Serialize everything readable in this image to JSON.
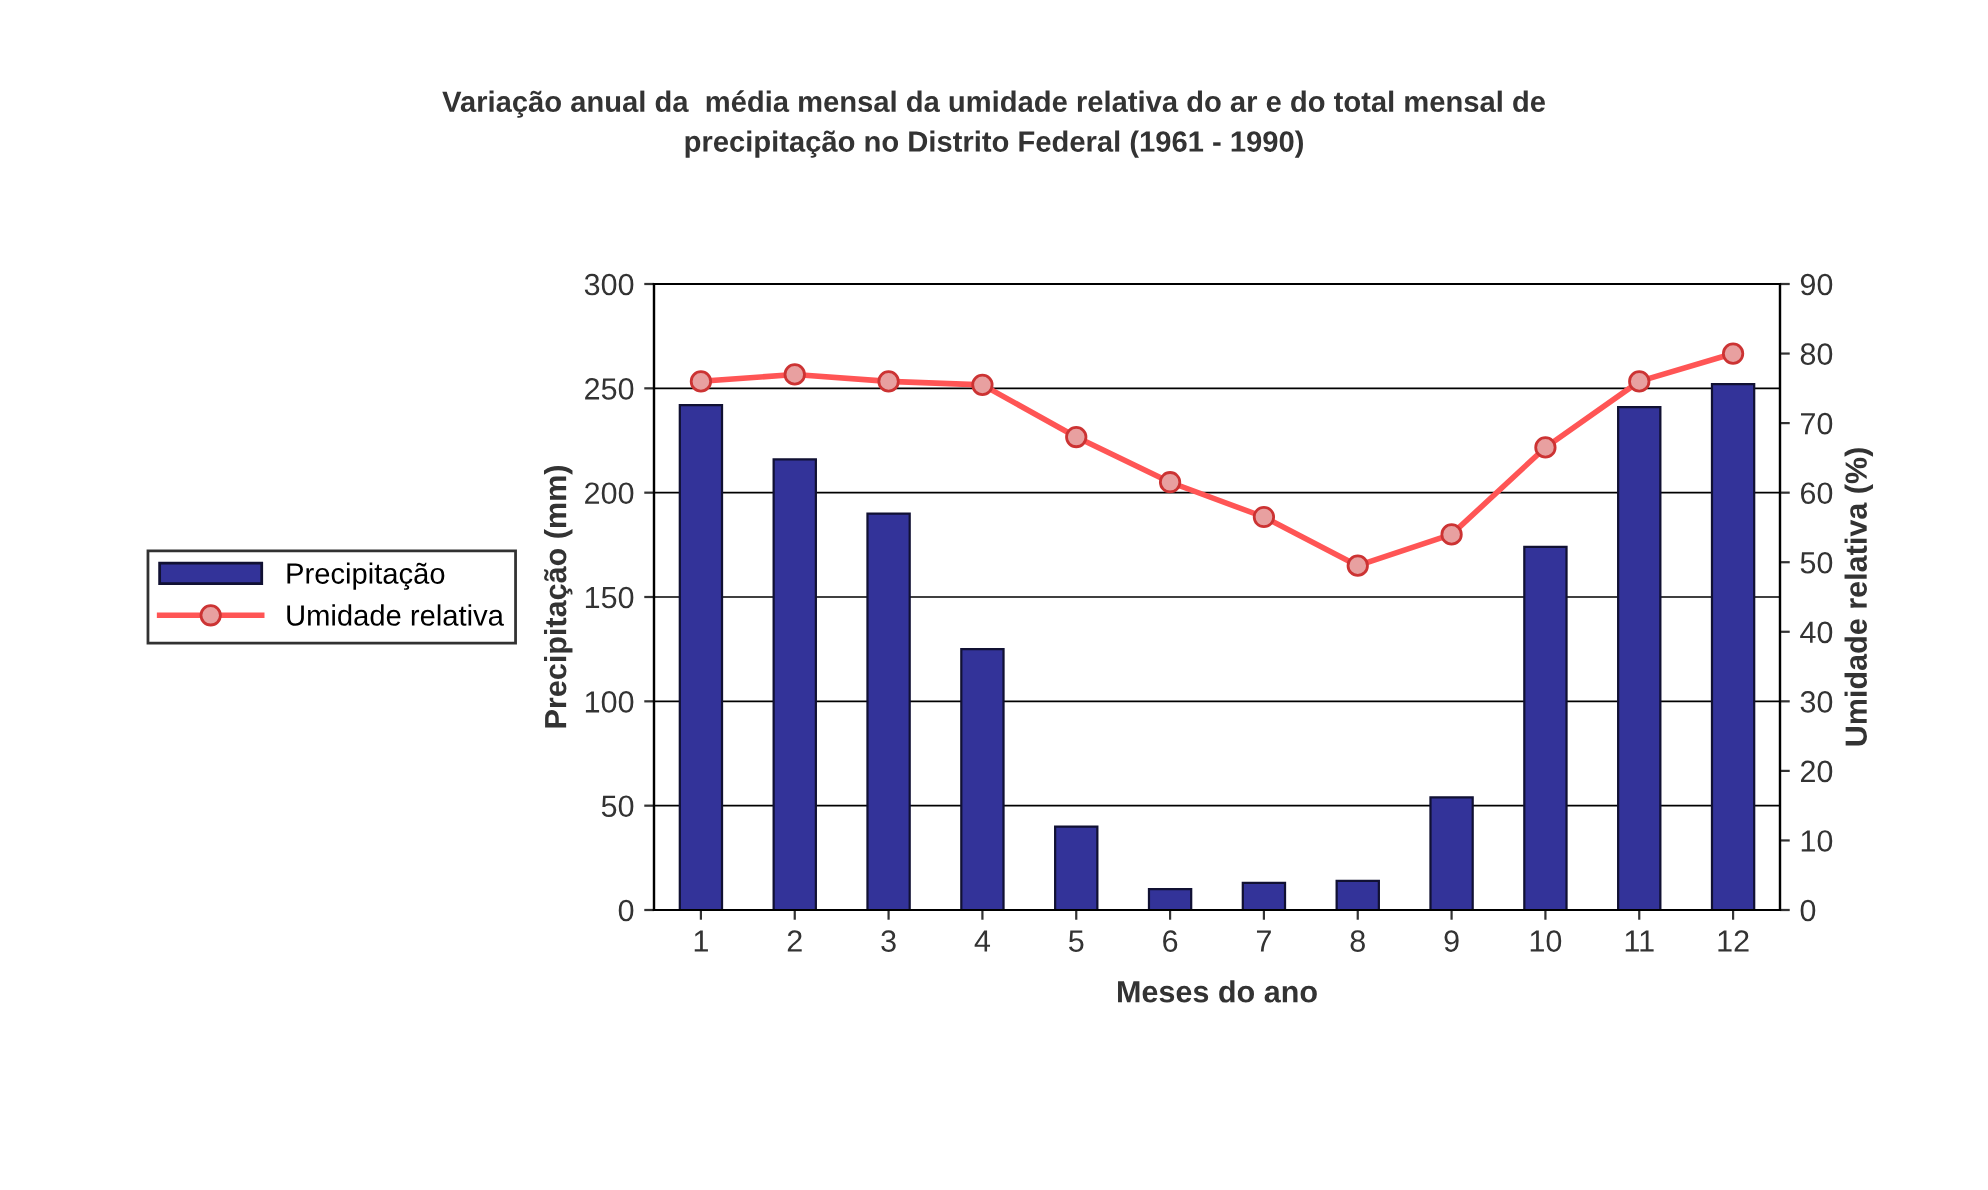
{
  "chart_data": {
    "type": "bar",
    "title": "Variação anual da  média mensal da umidade relativa do ar e do total mensal de\nprecipitação no Distrito Federal (1961 - 1990)",
    "xlabel": "Meses do ano",
    "ylabel": "Precipitação (mm)",
    "y2label": "Umidade relativa (%)",
    "categories": [
      "1",
      "2",
      "3",
      "4",
      "5",
      "6",
      "7",
      "8",
      "9",
      "10",
      "11",
      "12"
    ],
    "series": [
      {
        "name": "Precipitação",
        "color": "#333399",
        "values": [
          242,
          216,
          190,
          125,
          40,
          10,
          13,
          14,
          54,
          174,
          241,
          252
        ]
      },
      {
        "name": "Umidade relativa",
        "type": "line",
        "axis": "y2",
        "color": "#ff5555",
        "marker": "circle",
        "values": [
          76,
          77,
          76,
          75.5,
          68,
          61.5,
          56.5,
          49.5,
          54,
          66.5,
          76,
          80
        ]
      }
    ],
    "ylim": [
      0,
      300
    ],
    "yticks": [
      0,
      50,
      100,
      150,
      200,
      250,
      300
    ],
    "y2lim": [
      0,
      90
    ],
    "y2ticks": [
      0,
      10,
      20,
      30,
      40,
      50,
      60,
      70,
      80,
      90
    ],
    "grid": "y",
    "legend": "left"
  }
}
